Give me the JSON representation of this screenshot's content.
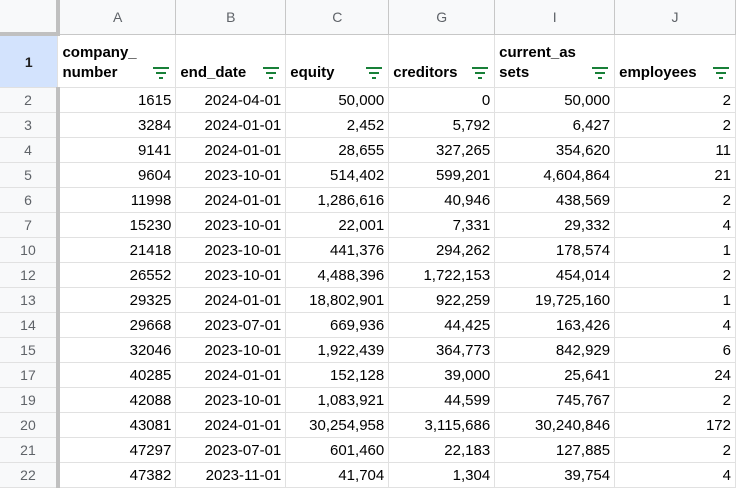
{
  "columns": [
    {
      "letter": "A",
      "header": "company_\nnumber"
    },
    {
      "letter": "B",
      "header": "end_date"
    },
    {
      "letter": "C",
      "header": "equity"
    },
    {
      "letter": "G",
      "header": "creditors"
    },
    {
      "letter": "I",
      "header": "current_as\nsets"
    },
    {
      "letter": "J",
      "header": "employees"
    }
  ],
  "header_row_number": "1",
  "rows": [
    {
      "n": "2",
      "cells": [
        "1615",
        "2024-04-01",
        "50,000",
        "0",
        "50,000",
        "2"
      ]
    },
    {
      "n": "3",
      "cells": [
        "3284",
        "2024-01-01",
        "2,452",
        "5,792",
        "6,427",
        "2"
      ]
    },
    {
      "n": "4",
      "cells": [
        "9141",
        "2024-01-01",
        "28,655",
        "327,265",
        "354,620",
        "11"
      ]
    },
    {
      "n": "5",
      "cells": [
        "9604",
        "2023-10-01",
        "514,402",
        "599,201",
        "4,604,864",
        "21"
      ]
    },
    {
      "n": "6",
      "cells": [
        "11998",
        "2024-01-01",
        "1,286,616",
        "40,946",
        "438,569",
        "2"
      ]
    },
    {
      "n": "7",
      "cells": [
        "15230",
        "2023-10-01",
        "22,001",
        "7,331",
        "29,332",
        "4"
      ]
    },
    {
      "n": "10",
      "cells": [
        "21418",
        "2023-10-01",
        "441,376",
        "294,262",
        "178,574",
        "1"
      ]
    },
    {
      "n": "12",
      "cells": [
        "26552",
        "2023-10-01",
        "4,488,396",
        "1,722,153",
        "454,014",
        "2"
      ]
    },
    {
      "n": "13",
      "cells": [
        "29325",
        "2024-01-01",
        "18,802,901",
        "922,259",
        "19,725,160",
        "1"
      ]
    },
    {
      "n": "14",
      "cells": [
        "29668",
        "2023-07-01",
        "669,936",
        "44,425",
        "163,426",
        "4"
      ]
    },
    {
      "n": "15",
      "cells": [
        "32046",
        "2023-10-01",
        "1,922,439",
        "364,773",
        "842,929",
        "6"
      ]
    },
    {
      "n": "17",
      "cells": [
        "40285",
        "2024-01-01",
        "152,128",
        "39,000",
        "25,641",
        "24"
      ]
    },
    {
      "n": "19",
      "cells": [
        "42088",
        "2023-10-01",
        "1,083,921",
        "44,599",
        "745,767",
        "2"
      ]
    },
    {
      "n": "20",
      "cells": [
        "43081",
        "2024-01-01",
        "30,254,958",
        "3,115,686",
        "30,240,846",
        "172"
      ]
    },
    {
      "n": "21",
      "cells": [
        "47297",
        "2023-07-01",
        "601,460",
        "22,183",
        "127,885",
        "2"
      ]
    },
    {
      "n": "22",
      "cells": [
        "47382",
        "2023-11-01",
        "41,704",
        "1,304",
        "39,754",
        "4"
      ]
    }
  ]
}
